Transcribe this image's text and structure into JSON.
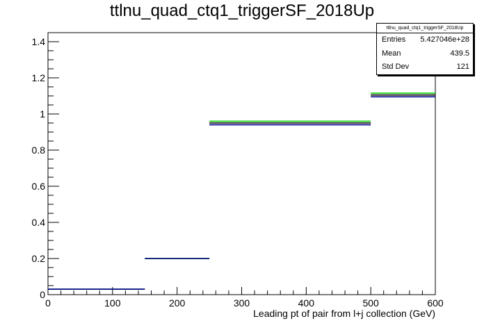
{
  "title": "ttlnu_quad_ctq1_triggerSF_2018Up",
  "stats": {
    "name": "ttlnu_quad_ctq1_triggerSF_2018Up",
    "rows": [
      {
        "label": "Entries",
        "value": "5.427046e+28"
      },
      {
        "label": "Mean",
        "value": "439.5"
      },
      {
        "label": "Std Dev",
        "value": "121"
      }
    ]
  },
  "chart_data": {
    "type": "line",
    "title": "ttlnu_quad_ctq1_triggerSF_2018Up",
    "xlabel": "Leading pt of pair from l+j collection (GeV)",
    "ylabel": "",
    "xlim": [
      0,
      600
    ],
    "ylim": [
      0,
      1.45
    ],
    "x_ticks": [
      0,
      100,
      200,
      300,
      400,
      500,
      600
    ],
    "y_ticks": [
      0,
      0.2,
      0.4,
      0.6,
      0.8,
      1,
      1.2,
      1.4
    ],
    "bins": [
      [
        0,
        150
      ],
      [
        150,
        250
      ],
      [
        250,
        500
      ],
      [
        500,
        600
      ]
    ],
    "series": [
      {
        "color": "#000000",
        "values": [
          0.03,
          0.2,
          0.95,
          1.105
        ]
      },
      {
        "color": "#00cc00",
        "values": [
          0.03,
          0.2,
          0.96,
          1.115
        ]
      },
      {
        "color": "#00008b",
        "values": [
          0.03,
          0.2,
          0.94,
          1.095
        ]
      }
    ],
    "grid": false,
    "legend_position": "top-right"
  }
}
